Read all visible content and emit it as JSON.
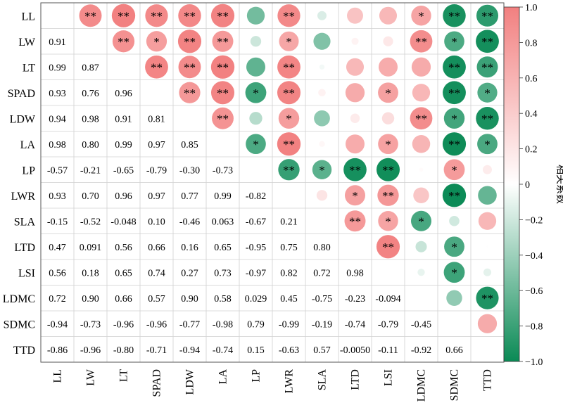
{
  "chart_data": {
    "type": "heatmap",
    "subtype": "correlation-matrix",
    "labels": [
      "LL",
      "LW",
      "LT",
      "SPAD",
      "LDW",
      "LA",
      "LP",
      "LWR",
      "SLA",
      "LTD",
      "LSI",
      "LDMC",
      "SDMC",
      "TTD"
    ],
    "lower_text": [
      [
        "",
        "",
        "",
        "",
        "",
        "",
        "",
        "",
        "",
        "",
        "",
        "",
        "",
        ""
      ],
      [
        "0.91",
        "",
        "",
        "",
        "",
        "",
        "",
        "",
        "",
        "",
        "",
        "",
        "",
        ""
      ],
      [
        "0.99",
        "0.87",
        "",
        "",
        "",
        "",
        "",
        "",
        "",
        "",
        "",
        "",
        "",
        ""
      ],
      [
        "0.93",
        "0.76",
        "0.96",
        "",
        "",
        "",
        "",
        "",
        "",
        "",
        "",
        "",
        "",
        ""
      ],
      [
        "0.94",
        "0.98",
        "0.91",
        "0.81",
        "",
        "",
        "",
        "",
        "",
        "",
        "",
        "",
        "",
        ""
      ],
      [
        "0.98",
        "0.80",
        "0.99",
        "0.97",
        "0.85",
        "",
        "",
        "",
        "",
        "",
        "",
        "",
        "",
        ""
      ],
      [
        "-0.57",
        "-0.21",
        "-0.65",
        "-0.79",
        "-0.30",
        "-0.73",
        "",
        "",
        "",
        "",
        "",
        "",
        "",
        ""
      ],
      [
        "0.93",
        "0.70",
        "0.96",
        "0.97",
        "0.77",
        "0.99",
        "-0.82",
        "",
        "",
        "",
        "",
        "",
        "",
        ""
      ],
      [
        "-0.15",
        "-0.52",
        "-0.048",
        "0.10",
        "-0.46",
        "0.063",
        "-0.67",
        "0.21",
        "",
        "",
        "",
        "",
        "",
        ""
      ],
      [
        "0.47",
        "0.091",
        "0.56",
        "0.66",
        "0.16",
        "0.65",
        "-0.95",
        "0.75",
        "0.80",
        "",
        "",
        "",
        "",
        ""
      ],
      [
        "0.56",
        "0.18",
        "0.65",
        "0.74",
        "0.27",
        "0.73",
        "-0.97",
        "0.82",
        "0.72",
        "0.98",
        "",
        "",
        "",
        ""
      ],
      [
        "0.72",
        "0.90",
        "0.66",
        "0.57",
        "0.90",
        "0.58",
        "0.029",
        "0.45",
        "-0.75",
        "-0.23",
        "-0.094",
        "",
        "",
        ""
      ],
      [
        "-0.94",
        "-0.73",
        "-0.96",
        "-0.96",
        "-0.77",
        "-0.98",
        "0.79",
        "-0.99",
        "-0.19",
        "-0.74",
        "-0.79",
        "-0.45",
        "",
        ""
      ],
      [
        "-0.86",
        "-0.96",
        "-0.80",
        "-0.71",
        "-0.94",
        "-0.74",
        "0.15",
        "-0.63",
        "0.57",
        "-0.0050",
        "-0.11",
        "-0.92",
        "0.66",
        ""
      ]
    ],
    "upper_sig": [
      [
        "",
        "**",
        "**",
        "**",
        "**",
        "**",
        "",
        "**",
        "",
        "",
        "",
        "*",
        "**",
        "**"
      ],
      [
        "",
        "",
        "**",
        "*",
        "**",
        "**",
        "",
        "*",
        "",
        "",
        "",
        "**",
        "*",
        "**"
      ],
      [
        "",
        "",
        "",
        "**",
        "**",
        "**",
        "",
        "**",
        "",
        "",
        "",
        "",
        "**",
        "**"
      ],
      [
        "",
        "",
        "",
        "",
        "**",
        "**",
        "*",
        "**",
        "",
        "",
        "*",
        "",
        "**",
        "*"
      ],
      [
        "",
        "",
        "",
        "",
        "",
        "**",
        "",
        "*",
        "",
        "",
        "",
        "**",
        "*",
        "**"
      ],
      [
        "",
        "",
        "",
        "",
        "",
        "",
        "*",
        "**",
        "",
        "",
        "*",
        "",
        "**",
        "*"
      ],
      [
        "",
        "",
        "",
        "",
        "",
        "",
        "",
        "**",
        "*",
        "**",
        "**",
        "",
        "*",
        ""
      ],
      [
        "",
        "",
        "",
        "",
        "",
        "",
        "",
        "",
        "",
        "*",
        "**",
        "",
        "**",
        ""
      ],
      [
        "",
        "",
        "",
        "",
        "",
        "",
        "",
        "",
        "",
        "**",
        "*",
        "*",
        "",
        ""
      ],
      [
        "",
        "",
        "",
        "",
        "",
        "",
        "",
        "",
        "",
        "",
        "**",
        "",
        "*",
        ""
      ],
      [
        "",
        "",
        "",
        "",
        "",
        "",
        "",
        "",
        "",
        "",
        "",
        "",
        "*",
        ""
      ],
      [
        "",
        "",
        "",
        "",
        "",
        "",
        "",
        "",
        "",
        "",
        "",
        "",
        "",
        "**"
      ],
      [
        "",
        "",
        "",
        "",
        "",
        "",
        "",
        "",
        "",
        "",
        "",
        "",
        "",
        ""
      ],
      [
        "",
        "",
        "",
        "",
        "",
        "",
        "",
        "",
        "",
        "",
        "",
        "",
        "",
        ""
      ]
    ],
    "colorbar": {
      "title": "相关系数",
      "range": [
        -1,
        1
      ],
      "ticks": [
        "1.0",
        "0.8",
        "0.6",
        "0.4",
        "0.2",
        "0",
        "−0.2",
        "−0.4",
        "−0.6",
        "−0.8",
        "−1.0"
      ],
      "positive_color": "#f28080",
      "zero_color": "#ffffff",
      "negative_color": "#0a8a55"
    },
    "grid": true
  }
}
